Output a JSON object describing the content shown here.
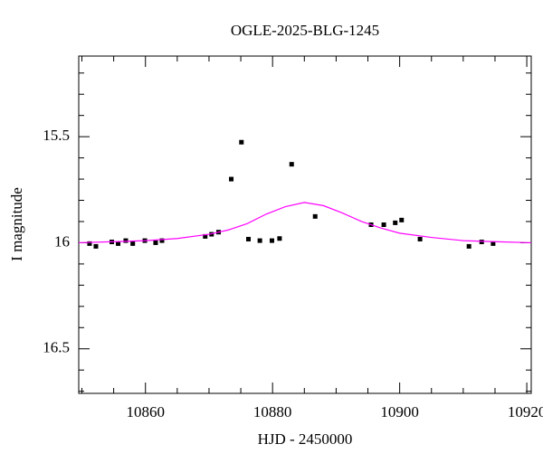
{
  "chart_data": {
    "type": "scatter",
    "title": "OGLE-2025-BLG-1245",
    "x_label": "HJD - 2450000",
    "y_label": "I magnitude",
    "xlim": [
      10849.5,
      10920.7
    ],
    "ylim": [
      16.71,
      15.12
    ],
    "xticks": [
      10860,
      10880,
      10900,
      10920
    ],
    "xticks_minor": [
      10850,
      10855,
      10865,
      10870,
      10875,
      10885,
      10890,
      10895,
      10905,
      10910,
      10915
    ],
    "yticks": [
      15.5,
      16,
      16.5
    ],
    "yticks_minor": [
      15.2,
      15.3,
      15.4,
      15.6,
      15.7,
      15.8,
      15.9,
      16.1,
      16.2,
      16.3,
      16.4,
      16.6,
      16.7
    ],
    "series": [
      {
        "kind": "points",
        "color": "#000000",
        "x": [
          10851.2,
          10852.2,
          10854.7,
          10855.7,
          10856.9,
          10858.0,
          10859.9,
          10861.6,
          10862.6,
          10869.4,
          10870.4,
          10871.5,
          10873.5,
          10875.1,
          10876.2,
          10878.0,
          10879.9,
          10881.1,
          10883.0,
          10886.7,
          10895.5,
          10897.5,
          10899.3,
          10900.3,
          10903.2,
          10910.9,
          10912.9,
          10914.7
        ],
        "values": [
          16.004,
          16.017,
          15.996,
          16.004,
          15.99,
          16.004,
          15.99,
          16.0,
          15.99,
          15.97,
          15.96,
          15.95,
          15.7,
          15.526,
          15.983,
          15.99,
          15.99,
          15.98,
          15.63,
          15.876,
          15.915,
          15.915,
          15.906,
          15.893,
          15.983,
          16.017,
          15.996,
          16.004
        ]
      },
      {
        "kind": "line",
        "color": "#ff00ff",
        "x": [
          10849.5,
          10855,
          10860,
          10865,
          10870,
          10873,
          10876,
          10879,
          10882,
          10885,
          10888,
          10891,
          10894,
          10897,
          10900,
          10905,
          10910,
          10915,
          10920.7
        ],
        "values": [
          16.0,
          15.995,
          15.99,
          15.98,
          15.96,
          15.94,
          15.91,
          15.865,
          15.83,
          15.81,
          15.825,
          15.86,
          15.9,
          15.93,
          15.955,
          15.975,
          15.99,
          15.995,
          16.0
        ]
      }
    ]
  }
}
